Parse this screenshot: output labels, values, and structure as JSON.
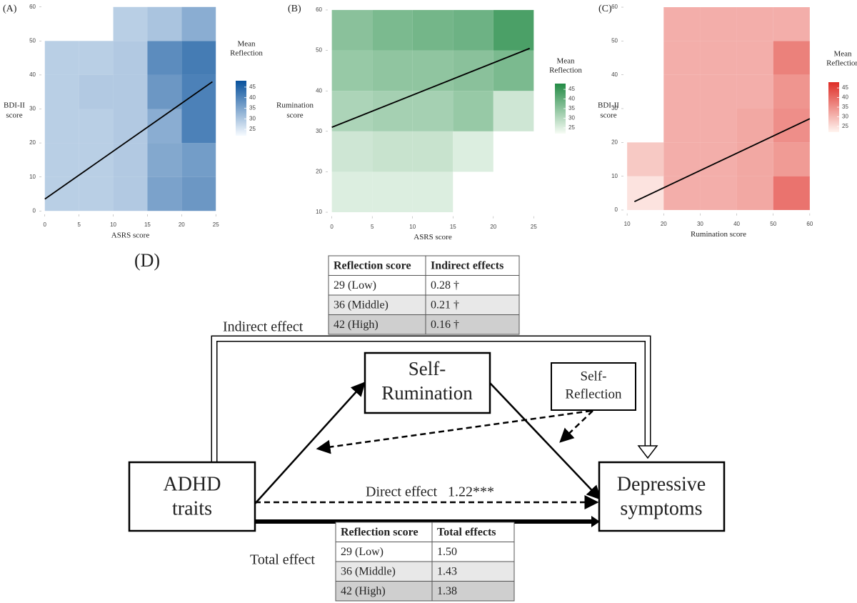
{
  "chart_data": [
    {
      "type": "heatmap",
      "panel": "(A)",
      "xlabel": "ASRS score",
      "ylabel": [
        "BDI-II",
        "score"
      ],
      "xlim": [
        -0.5,
        25.5
      ],
      "ylim": [
        -1,
        61
      ],
      "xticks": [
        0,
        5,
        10,
        15,
        20,
        25
      ],
      "yticks": [
        0,
        10,
        20,
        30,
        40,
        50,
        60
      ],
      "x_bins": [
        0,
        5,
        10,
        15,
        20,
        25
      ],
      "y_bins": [
        0,
        10,
        20,
        30,
        40,
        50,
        60
      ],
      "z": [
        [
          30,
          30,
          31,
          38,
          40
        ],
        [
          30,
          30,
          31,
          37,
          39
        ],
        [
          30,
          30,
          31,
          36,
          44
        ],
        [
          30,
          31,
          31,
          40,
          44
        ],
        [
          30,
          30,
          31,
          42,
          45
        ],
        [
          null,
          null,
          30,
          32,
          36
        ]
      ],
      "fit": {
        "x": [
          0,
          24.5
        ],
        "y": [
          3.5,
          38
        ]
      },
      "legend_title": [
        "Mean",
        "Reflection"
      ],
      "clim": [
        22,
        48
      ],
      "cticks": [
        25,
        30,
        35,
        40,
        45
      ],
      "colormap": [
        "#f7fbff",
        "#08519c"
      ]
    },
    {
      "type": "heatmap",
      "panel": "(B)",
      "xlabel": "ASRS score",
      "ylabel": [
        "Rumination",
        "score"
      ],
      "xlim": [
        -0.5,
        25.5
      ],
      "ylim": [
        9,
        61
      ],
      "xticks": [
        0,
        5,
        10,
        15,
        20,
        25
      ],
      "yticks": [
        10,
        20,
        30,
        40,
        50,
        60
      ],
      "x_bins": [
        0,
        5,
        10,
        15,
        20,
        25
      ],
      "y_bins": [
        10,
        20,
        30,
        40,
        50,
        60
      ],
      "z": [
        [
          26,
          26,
          26,
          null,
          null
        ],
        [
          28,
          29,
          29,
          26,
          null
        ],
        [
          33,
          34,
          34,
          36,
          28
        ],
        [
          36,
          37,
          37,
          38,
          40
        ],
        [
          38,
          40,
          41,
          42,
          47
        ]
      ],
      "fit": {
        "x": [
          0,
          24.5
        ],
        "y": [
          31,
          50.5
        ]
      },
      "legend_title": [
        "Mean",
        "Reflection"
      ],
      "clim": [
        22,
        48
      ],
      "cticks": [
        25,
        30,
        35,
        40,
        45
      ],
      "colormap": [
        "#f7fcf5",
        "#238b45"
      ]
    },
    {
      "type": "heatmap",
      "panel": "(C)",
      "xlabel": "Rumination score",
      "ylabel": [
        "BDI-II",
        "score"
      ],
      "xlim": [
        9,
        61
      ],
      "ylim": [
        -1,
        61
      ],
      "xticks": [
        10,
        20,
        30,
        40,
        50,
        60
      ],
      "yticks": [
        0,
        10,
        20,
        30,
        40,
        50,
        60
      ],
      "x_bins": [
        10,
        20,
        30,
        40,
        50,
        60
      ],
      "y_bins": [
        0,
        10,
        20,
        30,
        40,
        50,
        60
      ],
      "z": [
        [
          25,
          33,
          33,
          34,
          42
        ],
        [
          29,
          33,
          33,
          34,
          36
        ],
        [
          null,
          33,
          33,
          34,
          38
        ],
        [
          null,
          33,
          33,
          33,
          37
        ],
        [
          null,
          33,
          33,
          33,
          40
        ],
        [
          null,
          33,
          33,
          33,
          33
        ]
      ],
      "fit": {
        "x": [
          12,
          60
        ],
        "y": [
          2.5,
          27
        ]
      },
      "legend_title": [
        "Mean",
        "Reflection"
      ],
      "clim": [
        22,
        48
      ],
      "cticks": [
        25,
        30,
        35,
        40,
        45
      ],
      "colormap": [
        "#fff5f0",
        "#de2d26"
      ]
    }
  ],
  "diagram": {
    "panel": "(D)",
    "indirect_table": {
      "header": [
        "Reflection score",
        "Indirect effects"
      ],
      "rows": [
        [
          "29 (Low)",
          "0.28 †"
        ],
        [
          "36 (Middle)",
          "0.21 †"
        ],
        [
          "42 (High)",
          "0.16 †"
        ]
      ]
    },
    "total_table": {
      "header": [
        "Reflection score",
        "Total effects"
      ],
      "rows": [
        [
          "29 (Low)",
          "1.50"
        ],
        [
          "36 (Middle)",
          "1.43"
        ],
        [
          "42 (High)",
          "1.38"
        ]
      ]
    },
    "indirect_label": "Indirect effect",
    "total_label": "Total effect",
    "direct_label": "Direct effect",
    "direct_value": "1.22***",
    "nodes": {
      "adhd": [
        "ADHD",
        "traits"
      ],
      "rumination": [
        "Self-",
        "Rumination"
      ],
      "reflection": [
        "Self-",
        "Reflection"
      ],
      "depressive": [
        "Depressive",
        "symptoms"
      ]
    }
  }
}
